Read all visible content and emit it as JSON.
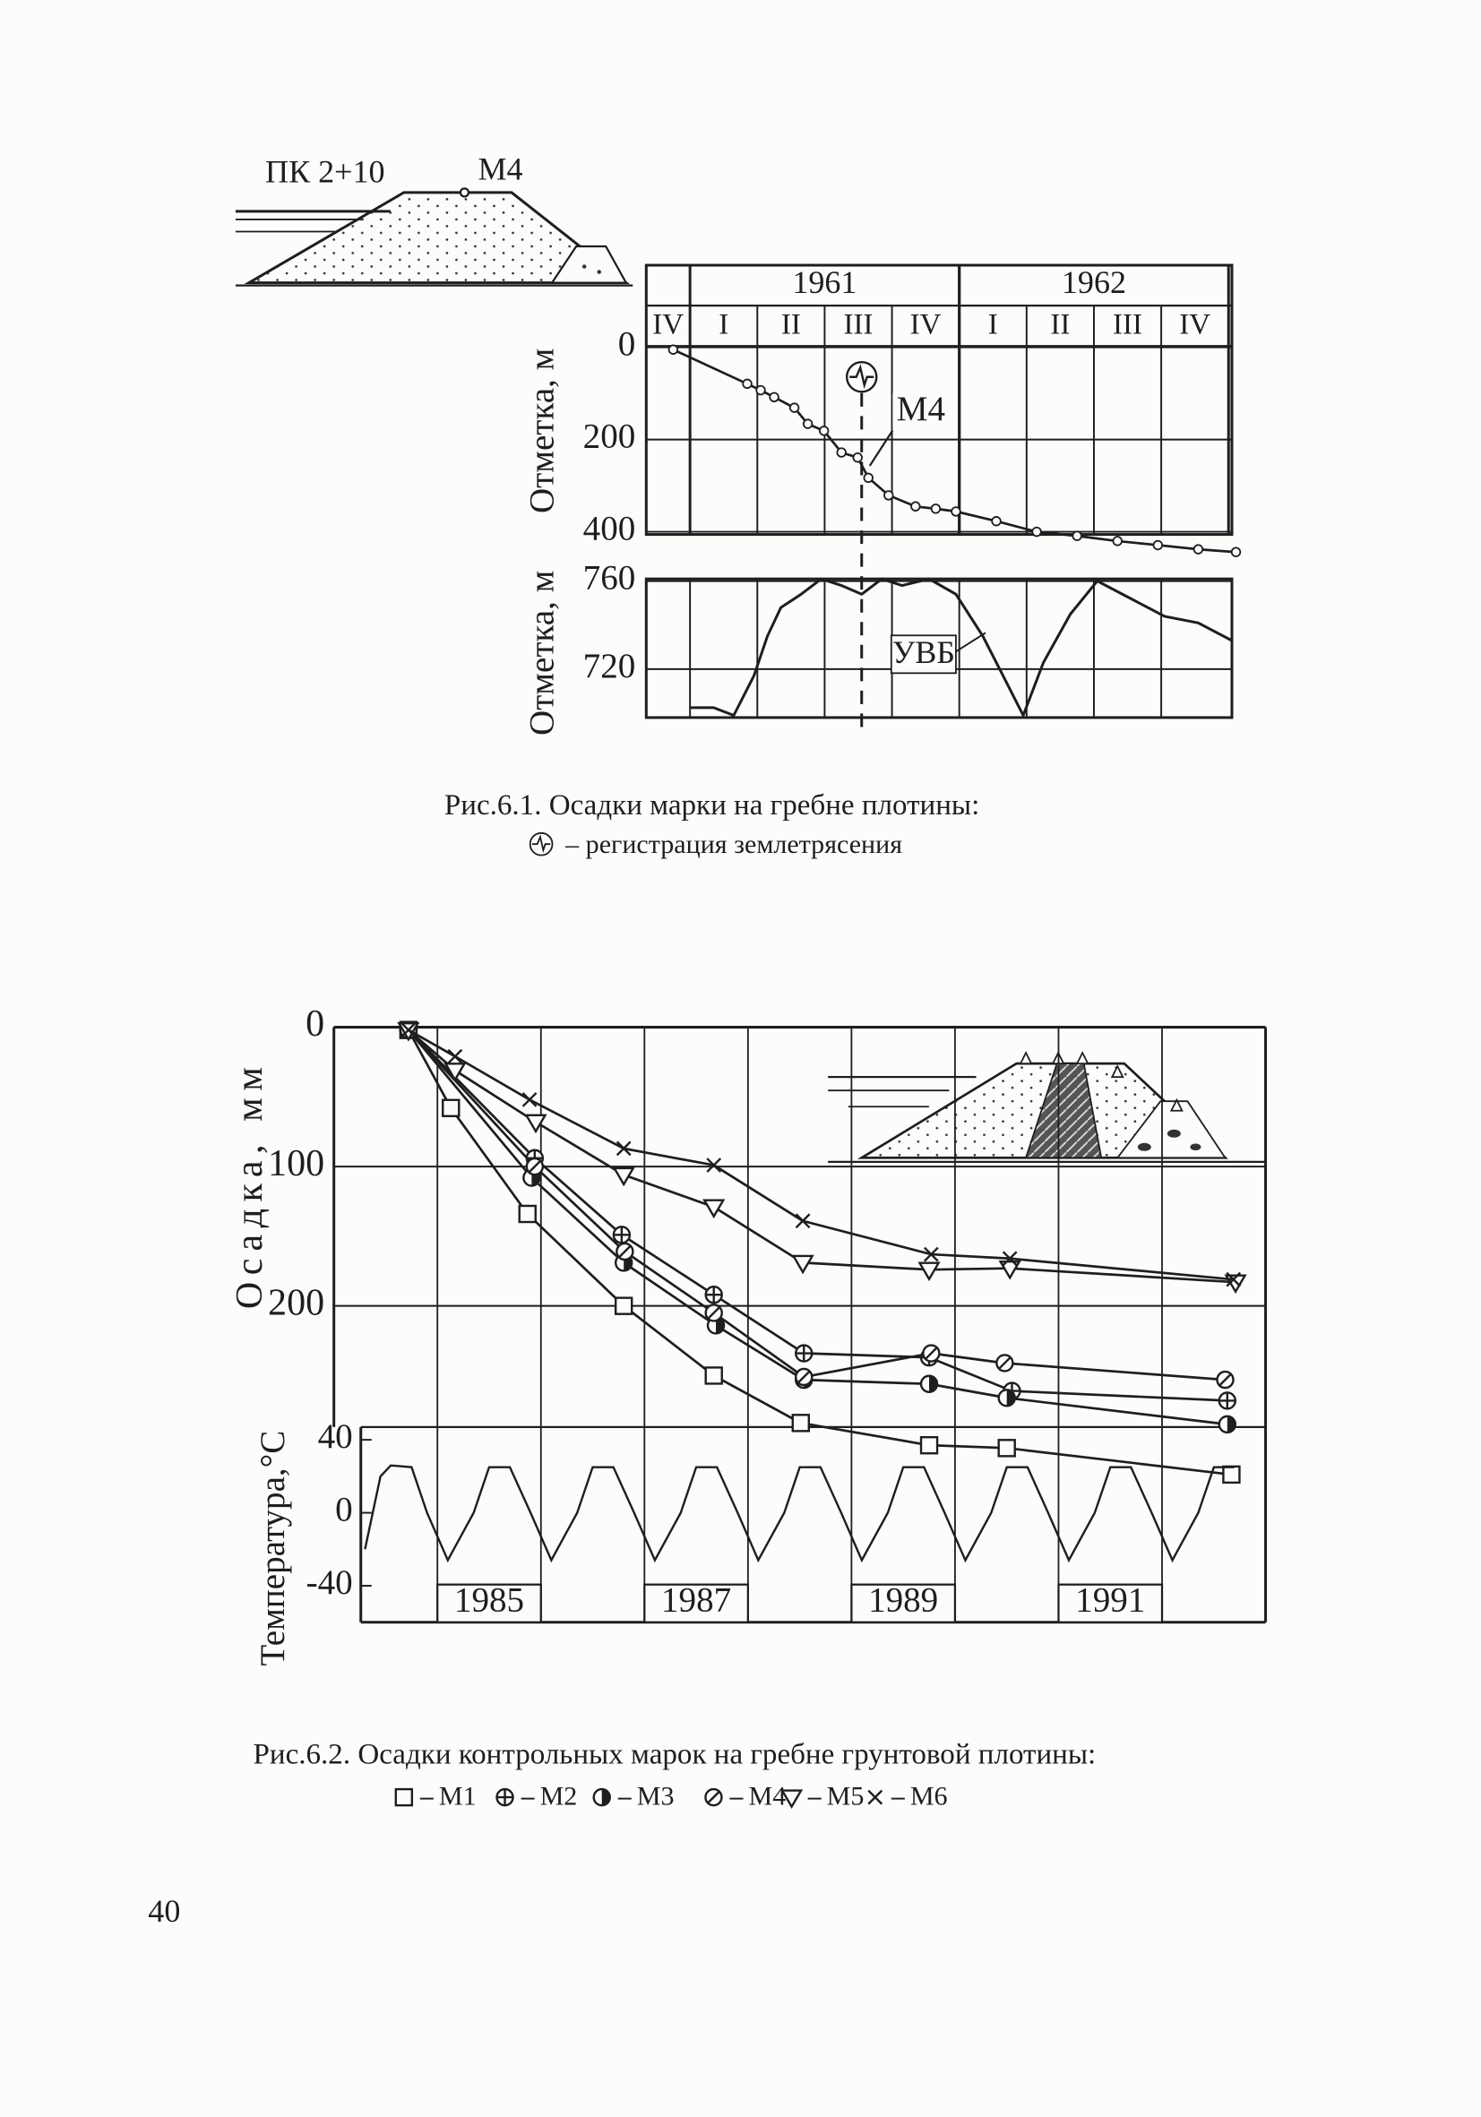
{
  "page_number": "40",
  "chart_data": [
    {
      "type": "line",
      "caption": [
        "Рис.6.1. Осадки марки на гребне плотины:",
        "– регистрация землетрясения"
      ],
      "sketch_labels": [
        "ПК 2+10"
      ],
      "ylabel": "Отметка, м",
      "years": [
        {
          "label": "1961",
          "start": 1,
          "end": 5
        },
        {
          "label": "1962",
          "start": 5,
          "end": 9
        }
      ],
      "categories": [
        "IV",
        "I",
        "II",
        "III",
        "IV",
        "I",
        "II",
        "III",
        "IV"
      ],
      "xlim": [
        0.35,
        9.05
      ],
      "ylim": [
        400,
        0
      ],
      "yticks": [
        0,
        200,
        400
      ],
      "earthquake_x": 3.55,
      "x": [
        0.75,
        1.85,
        2.05,
        2.25,
        2.55,
        2.75,
        2.99,
        3.25,
        3.49,
        3.65,
        3.95,
        4.35,
        4.65,
        4.95,
        5.55,
        6.15,
        6.75,
        7.35,
        7.95,
        8.55,
        9.11
      ],
      "series": [
        {
          "name": "М4",
          "color": "#1e1e1e",
          "values": [
            5,
            79,
            93,
            108,
            131,
            166,
            181,
            228,
            239,
            283,
            321,
            345,
            350,
            356,
            377,
            400,
            409,
            420,
            429,
            438,
            444
          ]
        }
      ]
    },
    {
      "type": "line",
      "ylabel": "Отметка, м",
      "xlim": [
        0.35,
        9.05
      ],
      "ylim": [
        698,
        761
      ],
      "yticks": [
        720,
        760
      ],
      "x": [
        0.99,
        1.35,
        1.65,
        1.95,
        2.15,
        2.35,
        2.65,
        2.95,
        3.25,
        3.55,
        3.85,
        4.15,
        4.55,
        4.95,
        5.35,
        5.65,
        5.95,
        6.25,
        6.65,
        7.05,
        7.55,
        8.05,
        8.55,
        9.05
      ],
      "series": [
        {
          "name": "УВБ",
          "color": "#1e1e1e",
          "values": [
            702.5,
            702.5,
            699,
            717,
            735,
            748,
            754,
            761,
            758,
            754,
            761,
            758,
            761,
            754,
            735,
            717,
            699,
            723,
            745,
            760,
            752,
            744,
            741,
            733
          ]
        }
      ]
    },
    {
      "type": "line",
      "caption": [
        "Рис.6.2. Осадки контрольных марок на гребне грунтовой плотины:"
      ],
      "ylabel": "Осадка, мм",
      "xlim": [
        1984,
        1993
      ],
      "ylim": [
        427,
        0
      ],
      "yticks": [
        0,
        100,
        200
      ],
      "xgrid": [
        1985,
        1986,
        1987,
        1988,
        1989,
        1990,
        1991,
        1992
      ],
      "series": [
        {
          "name": "М1",
          "marker": "square",
          "color": "#1e1e1e",
          "x": [
            1984.72,
            1985.13,
            1985.87,
            1986.8,
            1987.67,
            1988.51,
            1989.75,
            1990.5,
            1992.67
          ],
          "values": [
            2,
            58,
            134,
            200,
            250,
            284,
            300,
            302,
            321
          ]
        },
        {
          "name": "М2",
          "marker": "circle-plus",
          "color": "#1e1e1e",
          "x": [
            1984.72,
            1985.94,
            1986.78,
            1987.67,
            1988.54,
            1989.75,
            1990.55,
            1992.63
          ],
          "values": [
            2,
            94,
            149,
            192,
            234,
            237,
            261,
            268
          ]
        },
        {
          "name": "М3",
          "marker": "circle-half",
          "color": "#1e1e1e",
          "x": [
            1984.72,
            1985.91,
            1986.8,
            1987.69,
            1988.54,
            1989.75,
            1990.5,
            1992.63
          ],
          "values": [
            2,
            108,
            169,
            214,
            253,
            256,
            266,
            285
          ]
        },
        {
          "name": "М4",
          "marker": "circle-slash",
          "color": "#1e1e1e",
          "x": [
            1984.72,
            1985.94,
            1986.81,
            1987.67,
            1988.54,
            1989.77,
            1990.48,
            1992.61
          ],
          "values": [
            2,
            100,
            161,
            205,
            251,
            234,
            241,
            253
          ]
        },
        {
          "name": "М5",
          "marker": "triangle-down",
          "color": "#1e1e1e",
          "x": [
            1984.72,
            1985.17,
            1985.95,
            1986.8,
            1987.67,
            1988.53,
            1989.75,
            1990.53,
            1992.71
          ],
          "values": [
            2,
            31,
            68,
            106,
            129,
            169,
            174,
            173,
            183
          ]
        },
        {
          "name": "М6",
          "marker": "cross",
          "color": "#1e1e1e",
          "x": [
            1984.72,
            1985.17,
            1985.89,
            1986.8,
            1987.67,
            1988.53,
            1989.77,
            1990.53,
            1992.69
          ],
          "values": [
            2,
            21,
            52,
            87,
            99,
            139,
            163,
            166,
            181
          ]
        }
      ]
    },
    {
      "type": "line",
      "ylabel": "Температура,°С",
      "xlim": [
        1984,
        1993
      ],
      "ylim": [
        -60,
        47
      ],
      "yticks": [
        -40,
        0,
        40
      ],
      "xticks": [
        1985,
        1987,
        1989,
        1991
      ],
      "x": [
        1984.3,
        1984.45,
        1984.55,
        1984.75,
        1984.9,
        1985.1,
        1985.35,
        1985.5,
        1985.7,
        1985.9,
        1986.1,
        1986.35,
        1986.5,
        1986.7,
        1986.9,
        1987.1,
        1987.35,
        1987.5,
        1987.7,
        1987.9,
        1988.1,
        1988.35,
        1988.5,
        1988.7,
        1988.9,
        1989.1,
        1989.35,
        1989.5,
        1989.7,
        1989.9,
        1990.1,
        1990.35,
        1990.5,
        1990.7,
        1990.9,
        1991.1,
        1991.35,
        1991.5,
        1991.7,
        1991.9,
        1992.1,
        1992.35,
        1992.5,
        1992.7
      ],
      "series": [
        {
          "name": "Температура",
          "color": "#1e1e1e",
          "values": [
            -20,
            20,
            26,
            25,
            0,
            -26,
            0,
            25,
            25,
            0,
            -26,
            0,
            25,
            25,
            0,
            -26,
            0,
            25,
            25,
            0,
            -26,
            0,
            25,
            25,
            0,
            -26,
            0,
            25,
            25,
            0,
            -26,
            0,
            25,
            25,
            0,
            -26,
            0,
            25,
            25,
            0,
            -26,
            0,
            25,
            25
          ]
        }
      ]
    }
  ]
}
